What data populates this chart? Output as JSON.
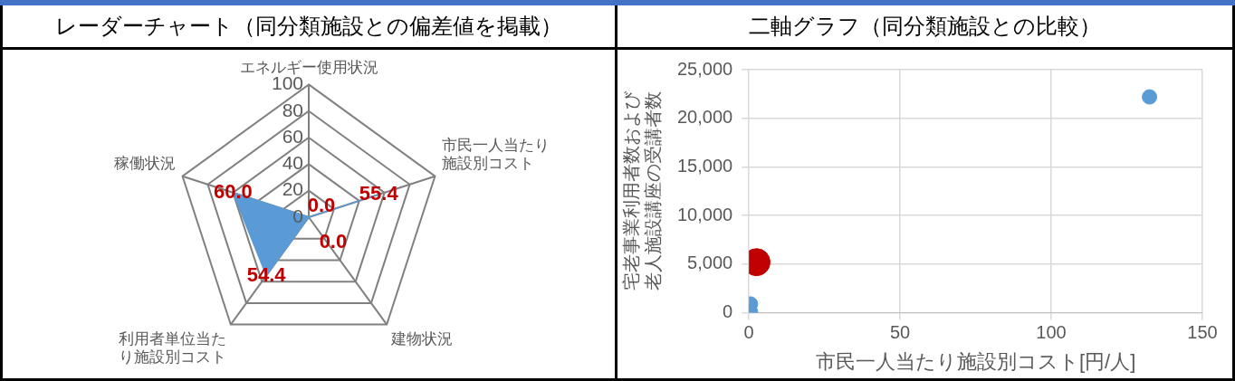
{
  "chart_data": [
    {
      "type": "radar",
      "title": "レーダーチャート（同分類施設との偏差値を掲載）",
      "categories": [
        "エネルギー使用状況",
        "市民一人当たり施設別コスト",
        "建物状況",
        "利用者単位当たり施設別コスト",
        "稼働状況"
      ],
      "series": [
        {
          "color": "#5b9bd5",
          "values": [
            0,
            55.4,
            0,
            54.4,
            60.0
          ],
          "value_labels": [
            "0.0",
            "55.4",
            "0.0",
            "54.4",
            "60.0"
          ]
        }
      ],
      "ylim": [
        0,
        100
      ],
      "yticks": [
        0,
        20,
        40,
        60,
        80,
        100
      ],
      "legend": false,
      "grid": true
    },
    {
      "type": "scatter",
      "title": "二軸グラフ（同分類施設との比較）",
      "xlabel": "市民一人当たり施設別コスト[円/人]",
      "ylabel": "宅老事業利用者数および老人施設講座の受講者数",
      "series": [
        {
          "color": "#5b9bd5",
          "x": [
            132.5,
            0.5,
            0.5
          ],
          "values": [
            22200,
            900,
            100
          ]
        },
        {
          "color": "#c00000",
          "x": [
            2.5
          ],
          "values": [
            5200
          ]
        }
      ],
      "xlim": [
        0,
        150
      ],
      "xticks": [
        0,
        50,
        100,
        150
      ],
      "ylim": [
        0,
        25000
      ],
      "yticks": [
        0,
        {
          "value": 5000,
          "label": "5,000"
        },
        {
          "value": 10000,
          "label": "10,000"
        },
        {
          "value": 15000,
          "label": "15,000"
        },
        {
          "value": 20000,
          "label": "20,000"
        },
        {
          "value": 25000,
          "label": "25,000"
        }
      ],
      "grid": true,
      "legend": false,
      "marker": "circle"
    }
  ]
}
